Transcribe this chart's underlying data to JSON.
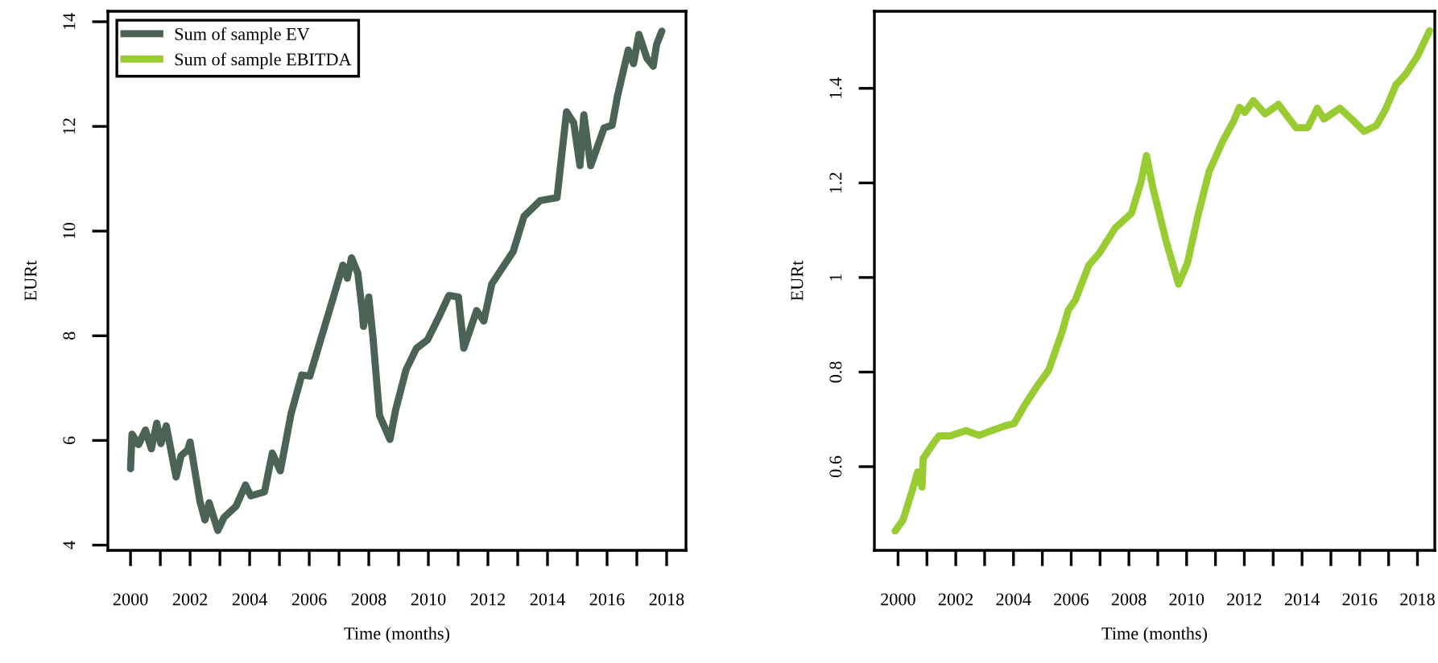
{
  "chart_data": [
    {
      "type": "line",
      "xlabel": "Time (months)",
      "ylabel": "EURt",
      "legend": "top left",
      "grid": false,
      "xlim": [
        1999.24,
        2018.65
      ],
      "ylim": [
        3.9,
        14.2
      ],
      "xticks": [
        2000,
        {
          "value": 2001,
          "label": null
        },
        2002,
        {
          "value": 2003,
          "label": null
        },
        2004,
        {
          "value": 2005,
          "label": null
        },
        2006,
        {
          "value": 2007,
          "label": null
        },
        2008,
        {
          "value": 2009,
          "label": null
        },
        2010,
        {
          "value": 2011,
          "label": null
        },
        2012,
        {
          "value": 2013,
          "label": null
        },
        2014,
        {
          "value": 2015,
          "label": null
        },
        2016,
        {
          "value": 2017,
          "label": null
        },
        2018
      ],
      "yticks": [
        4,
        6,
        8,
        10,
        12,
        14
      ],
      "series": [
        {
          "name": "Sum of sample EV",
          "color": "#4a6354",
          "x": [
            2000.0,
            2000.05,
            2000.27,
            2000.5,
            2000.7,
            2000.88,
            2001.02,
            2001.2,
            2001.53,
            2001.7,
            2001.92,
            2002.0,
            2002.33,
            2002.5,
            2002.64,
            2002.93,
            2003.14,
            2003.54,
            2003.86,
            2004.04,
            2004.5,
            2004.76,
            2005.03,
            2005.39,
            2005.75,
            2006.02,
            2006.74,
            2007.13,
            2007.28,
            2007.42,
            2007.63,
            2007.78,
            2007.82,
            2008.0,
            2008.14,
            2008.36,
            2008.71,
            2008.9,
            2009.25,
            2009.6,
            2009.97,
            2010.33,
            2010.69,
            2011.01,
            2011.19,
            2011.62,
            2011.86,
            2012.13,
            2012.85,
            2013.21,
            2013.75,
            2014.32,
            2014.64,
            2014.88,
            2015.09,
            2015.22,
            2015.45,
            2015.9,
            2016.17,
            2016.35,
            2016.71,
            2016.89,
            2017.07,
            2017.34,
            2017.55,
            2017.66,
            2017.84
          ],
          "values": [
            5.46,
            6.12,
            5.92,
            6.2,
            5.84,
            6.33,
            5.94,
            6.28,
            5.3,
            5.71,
            5.82,
            5.97,
            4.84,
            4.48,
            4.81,
            4.28,
            4.53,
            4.74,
            5.15,
            4.94,
            5.02,
            5.76,
            5.42,
            6.51,
            7.25,
            7.23,
            8.6,
            9.35,
            9.1,
            9.49,
            9.2,
            8.48,
            8.18,
            8.74,
            7.97,
            6.48,
            6.02,
            6.58,
            7.35,
            7.76,
            7.92,
            8.33,
            8.77,
            8.74,
            7.76,
            8.48,
            8.28,
            8.99,
            9.61,
            10.28,
            10.58,
            10.64,
            12.28,
            12.07,
            11.25,
            12.22,
            11.25,
            11.97,
            12.02,
            12.58,
            13.46,
            13.2,
            13.76,
            13.3,
            13.15,
            13.56,
            13.82
          ]
        }
      ]
    },
    {
      "type": "line",
      "xlabel": "Time (months)",
      "ylabel": "EURt",
      "grid": false,
      "xlim": [
        1999.18,
        2018.6
      ],
      "ylim": [
        0.423,
        1.563
      ],
      "xticks": [
        2000,
        {
          "value": 2001,
          "label": null
        },
        2002,
        {
          "value": 2003,
          "label": null
        },
        2004,
        {
          "value": 2005,
          "label": null
        },
        2006,
        {
          "value": 2007,
          "label": null
        },
        2008,
        {
          "value": 2009,
          "label": null
        },
        2010,
        {
          "value": 2011,
          "label": null
        },
        2012,
        {
          "value": 2013,
          "label": null
        },
        2014,
        {
          "value": 2015,
          "label": null
        },
        2016,
        {
          "value": 2017,
          "label": null
        },
        2018
      ],
      "yticks": [
        0.6,
        0.8,
        {
          "value": 1.0,
          "label": "1"
        },
        1.2,
        1.4
      ],
      "series": [
        {
          "name": "Sum of sample EBITDA",
          "color": "#99cc33",
          "x": [
            1999.9,
            2000.17,
            2000.46,
            2000.68,
            2000.83,
            2000.87,
            2001.24,
            2001.42,
            2001.8,
            2002.35,
            2002.81,
            2003.28,
            2003.74,
            2004.02,
            2004.39,
            2004.85,
            2005.22,
            2005.68,
            2005.9,
            2006.14,
            2006.61,
            2006.98,
            2007.53,
            2008.09,
            2008.42,
            2008.61,
            2008.83,
            2009.29,
            2009.72,
            2010.03,
            2010.4,
            2010.78,
            2011.24,
            2011.64,
            2011.83,
            2012.02,
            2012.31,
            2012.72,
            2013.18,
            2013.79,
            2014.2,
            2014.53,
            2014.76,
            2015.31,
            2015.72,
            2016.15,
            2016.57,
            2016.89,
            2017.26,
            2017.57,
            2018.0,
            2018.42
          ],
          "values": [
            0.464,
            0.487,
            0.543,
            0.589,
            0.557,
            0.617,
            0.651,
            0.665,
            0.665,
            0.676,
            0.666,
            0.677,
            0.687,
            0.691,
            0.73,
            0.773,
            0.804,
            0.884,
            0.931,
            0.952,
            1.026,
            1.052,
            1.105,
            1.136,
            1.202,
            1.258,
            1.19,
            1.077,
            0.986,
            1.031,
            1.133,
            1.224,
            1.287,
            1.332,
            1.36,
            1.349,
            1.374,
            1.346,
            1.366,
            1.317,
            1.317,
            1.358,
            1.335,
            1.358,
            1.335,
            1.309,
            1.321,
            1.355,
            1.408,
            1.428,
            1.468,
            1.522
          ]
        }
      ]
    }
  ]
}
